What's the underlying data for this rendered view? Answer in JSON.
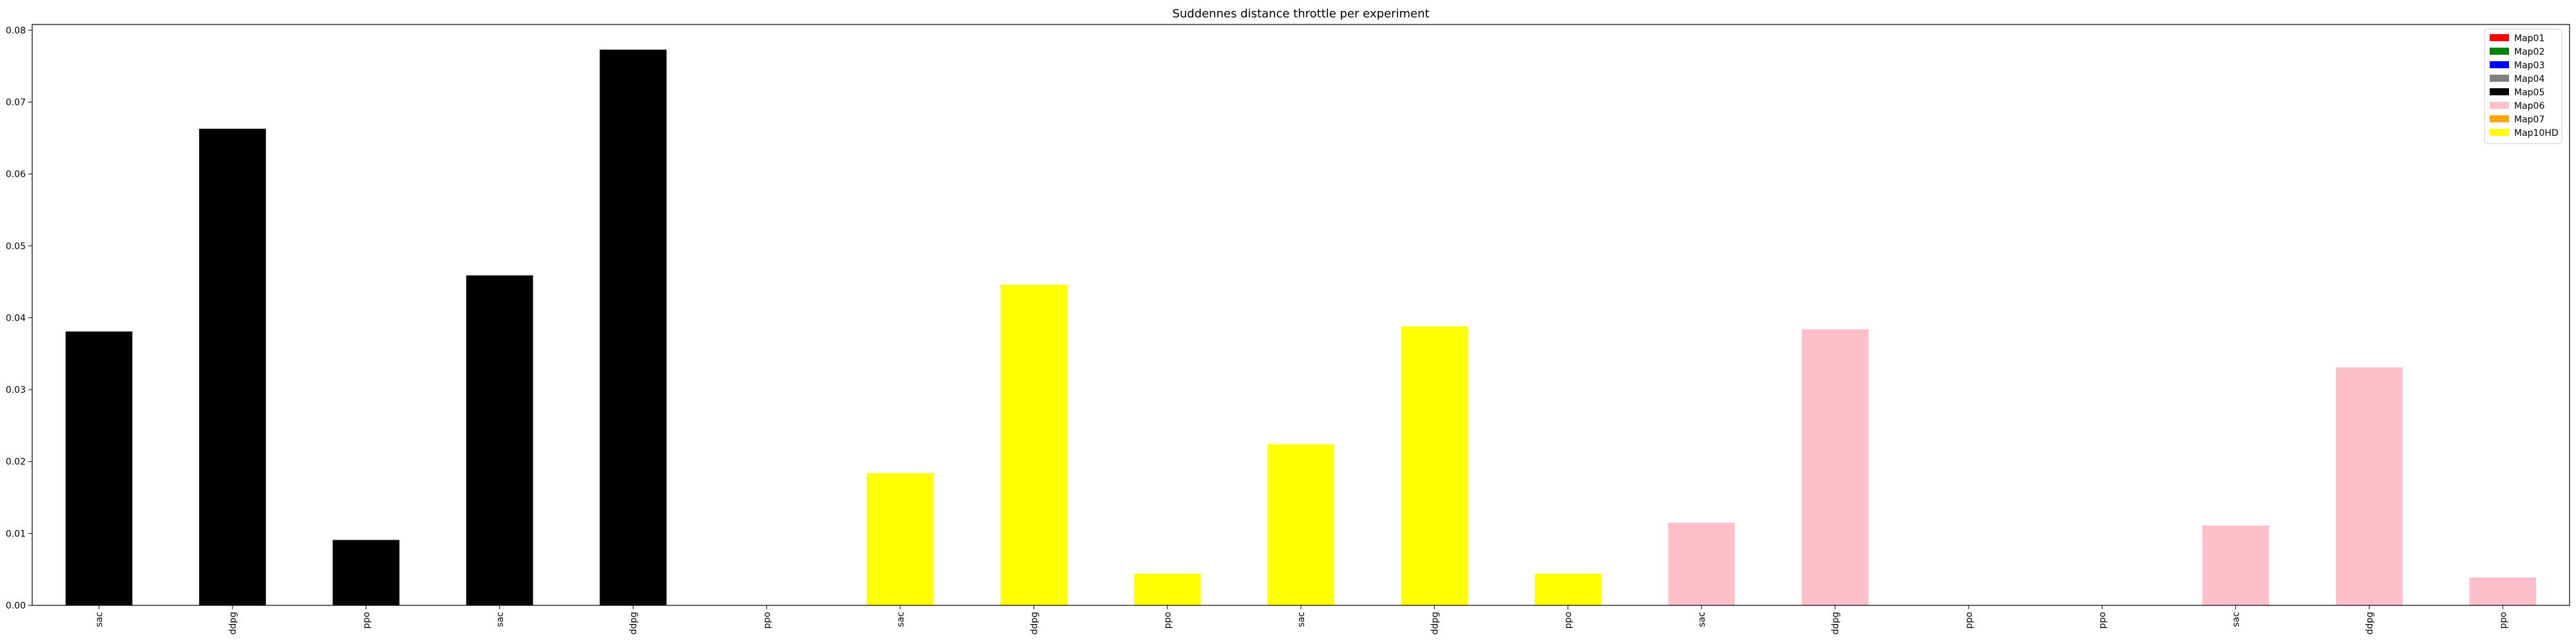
{
  "chart_data": {
    "type": "bar",
    "title": "Suddennes distance throttle per experiment",
    "xlabel": "",
    "ylabel": "",
    "ylim": [
      0,
      0.0808
    ],
    "yticks": [
      "0.00",
      "0.01",
      "0.02",
      "0.03",
      "0.04",
      "0.05",
      "0.06",
      "0.07",
      "0.08"
    ],
    "grid": false,
    "legend_position": "top-right",
    "legend": [
      {
        "label": "Map01",
        "color": "#ff0000"
      },
      {
        "label": "Map02",
        "color": "#008000"
      },
      {
        "label": "Map03",
        "color": "#0000ff"
      },
      {
        "label": "Map04",
        "color": "#808080"
      },
      {
        "label": "Map05",
        "color": "#000000"
      },
      {
        "label": "Map06",
        "color": "#ffc0cb"
      },
      {
        "label": "Map07",
        "color": "#ffa500"
      },
      {
        "label": "Map10HD",
        "color": "#ffff00"
      }
    ],
    "categories": [
      "sac",
      "ddpg",
      "ppo",
      "sac",
      "ddpg",
      "ppo",
      "sac",
      "ddpg",
      "ppo",
      "sac",
      "ddpg",
      "ppo",
      "sac",
      "ddpg",
      "ppo",
      "ppo",
      "sac",
      "ddpg",
      "ppo"
    ],
    "values": [
      0.0381,
      0.0663,
      0.0091,
      0.0459,
      0.0773,
      0.0,
      0.0184,
      0.0446,
      0.0044,
      0.0224,
      0.0388,
      0.0044,
      0.0115,
      0.0384,
      0.0,
      0.0,
      0.0111,
      0.0331,
      0.0039
    ],
    "bar_colors": [
      "#000000",
      "#000000",
      "#000000",
      "#000000",
      "#000000",
      "#000000",
      "#ffff00",
      "#ffff00",
      "#ffff00",
      "#ffff00",
      "#ffff00",
      "#ffff00",
      "#ffc0cb",
      "#ffc0cb",
      "#ffc0cb",
      "#ffc0cb",
      "#ffc0cb",
      "#ffc0cb",
      "#ffc0cb"
    ]
  }
}
